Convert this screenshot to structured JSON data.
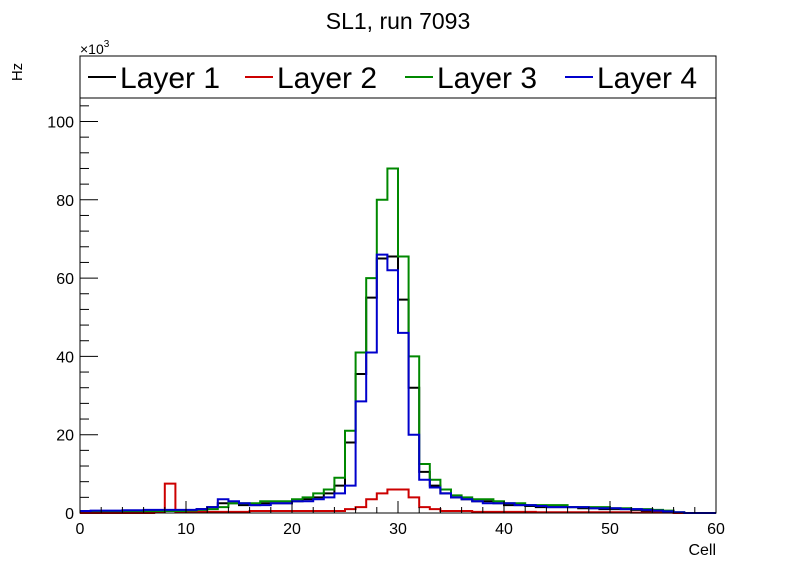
{
  "chart_data": {
    "type": "histogram",
    "title": "SL1, run 7093",
    "xlabel": "Cell",
    "ylabel": "Hz",
    "y_multiplier_label": "×10",
    "y_multiplier_exponent": "3",
    "xlim": [
      0,
      60
    ],
    "ylim": [
      0,
      106
    ],
    "x_ticks": [
      0,
      10,
      20,
      30,
      40,
      50,
      60
    ],
    "y_ticks": [
      0,
      20,
      40,
      60,
      80,
      100
    ],
    "x_tick_labels": [
      "0",
      "10",
      "20",
      "30",
      "40",
      "50",
      "60"
    ],
    "y_tick_labels": [
      "0",
      "20",
      "40",
      "60",
      "80",
      "100"
    ],
    "bin_edges_start": 0,
    "bin_width": 1,
    "legend_position": "top",
    "series": [
      {
        "name": "Layer 1",
        "color": "#000000",
        "values": [
          0.5,
          0.5,
          0.5,
          0.5,
          0.5,
          0.5,
          0.5,
          0.6,
          0.6,
          0.6,
          0.7,
          1.0,
          1.5,
          2.5,
          2.5,
          2.0,
          2.0,
          2.5,
          2.5,
          2.5,
          3.0,
          3.5,
          4.0,
          5.0,
          7.0,
          18.0,
          35.5,
          55.0,
          65.0,
          65.5,
          54.5,
          32.0,
          10.5,
          7.0,
          5.0,
          4.0,
          3.5,
          3.0,
          3.0,
          2.5,
          2.0,
          2.0,
          1.8,
          1.5,
          1.5,
          1.5,
          1.5,
          1.2,
          1.2,
          1.0,
          1.0,
          1.0,
          0.8,
          0.5,
          0.3,
          0.2,
          0.1,
          0.0,
          0.0,
          0.0
        ]
      },
      {
        "name": "Layer 2",
        "color": "#cc0000",
        "values": [
          0.0,
          0.0,
          0.0,
          0.0,
          0.0,
          0.0,
          0.0,
          0.3,
          7.5,
          0.3,
          0.3,
          0.3,
          0.3,
          0.3,
          0.3,
          0.3,
          0.5,
          0.5,
          0.5,
          0.5,
          0.5,
          0.5,
          0.5,
          0.5,
          0.5,
          1.0,
          1.5,
          3.5,
          5.0,
          6.0,
          6.0,
          4.0,
          1.5,
          1.0,
          0.5,
          0.5,
          0.5,
          0.3,
          0.3,
          0.3,
          0.3,
          0.3,
          0.3,
          0.2,
          0.2,
          0.2,
          0.2,
          0.2,
          0.2,
          0.2,
          0.2,
          0.2,
          0.1,
          0.1,
          0.1,
          0.1,
          0.0,
          0.0,
          0.0,
          0.0
        ]
      },
      {
        "name": "Layer 3",
        "color": "#008800",
        "values": [
          0.5,
          0.5,
          0.5,
          0.5,
          0.5,
          0.5,
          0.5,
          0.5,
          0.5,
          0.5,
          0.6,
          0.8,
          1.0,
          1.5,
          2.5,
          2.5,
          2.5,
          3.0,
          3.0,
          3.0,
          3.5,
          4.0,
          5.0,
          6.0,
          9.0,
          21.0,
          41.0,
          60.0,
          80.0,
          88.0,
          65.5,
          40.0,
          12.5,
          8.5,
          6.0,
          4.5,
          4.0,
          3.5,
          3.5,
          3.0,
          2.5,
          2.5,
          2.0,
          2.0,
          2.0,
          2.0,
          1.5,
          1.5,
          1.5,
          1.5,
          1.2,
          1.2,
          1.0,
          1.0,
          0.8,
          0.6,
          0.2,
          0.0,
          0.0,
          0.0
        ]
      },
      {
        "name": "Layer 4",
        "color": "#0000cc",
        "values": [
          0.5,
          0.6,
          0.6,
          0.6,
          0.7,
          0.7,
          0.8,
          0.8,
          0.8,
          0.8,
          0.8,
          1.0,
          1.5,
          3.5,
          3.0,
          2.5,
          2.0,
          2.0,
          2.5,
          2.5,
          3.0,
          3.0,
          3.5,
          4.0,
          5.0,
          7.0,
          28.5,
          41.0,
          66.0,
          62.0,
          46.0,
          20.0,
          8.5,
          6.5,
          5.0,
          4.0,
          3.5,
          3.0,
          2.5,
          2.5,
          2.5,
          2.0,
          2.0,
          1.8,
          1.5,
          1.5,
          1.5,
          1.5,
          1.2,
          1.2,
          1.2,
          1.0,
          1.0,
          0.8,
          0.6,
          0.4,
          0.2,
          0.0,
          0.0,
          0.0
        ]
      }
    ]
  }
}
